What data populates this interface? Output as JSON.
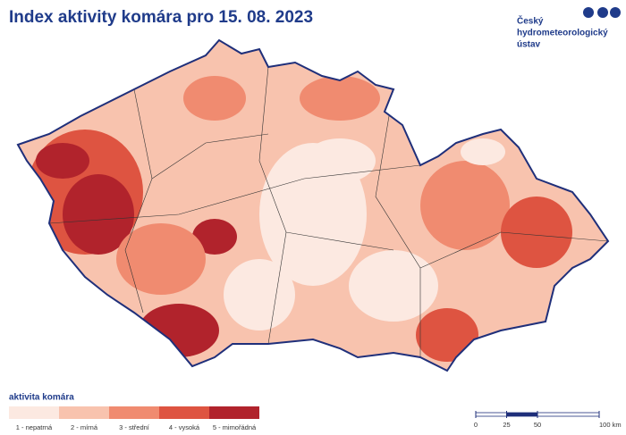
{
  "title": "Index aktivity komára pro 15. 08. 2023",
  "logo": {
    "lines": [
      "Český",
      "hydrometeorologický",
      "ústav"
    ]
  },
  "legend": {
    "title": "aktivita komára",
    "items": [
      {
        "label": "1 - nepatrná",
        "color": "#fce9e1"
      },
      {
        "label": "2 - mírná",
        "color": "#f8c3ae"
      },
      {
        "label": "3 - střední",
        "color": "#f08b70"
      },
      {
        "label": "4 - vysoká",
        "color": "#de5441"
      },
      {
        "label": "5 - mimořádná",
        "color": "#b1232c"
      }
    ]
  },
  "scale_bar": {
    "ticks": [
      0,
      25,
      50,
      {
        "value": 100,
        "label": "100 km"
      }
    ]
  }
}
